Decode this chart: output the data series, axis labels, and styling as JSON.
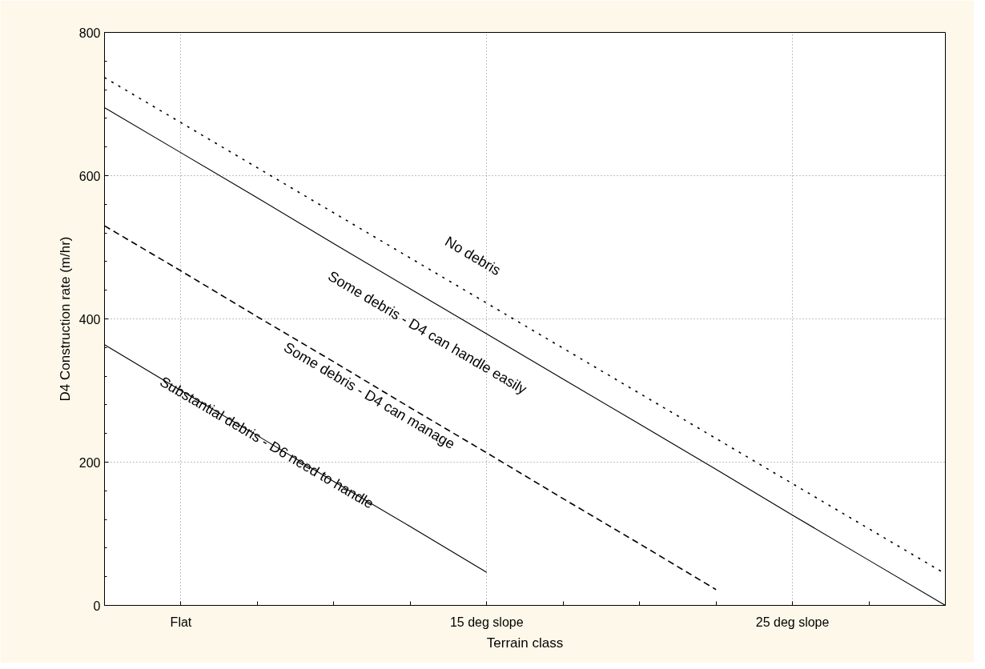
{
  "chart_data": {
    "type": "line",
    "xlabel": "Terrain class",
    "ylabel": "D4 Construction rate (m/hr)",
    "categories": [
      null,
      "Flat",
      null,
      null,
      null,
      "15 deg slope",
      null,
      null,
      null,
      "25 deg slope",
      null,
      null
    ],
    "ylim": [
      0,
      800
    ],
    "yticks": [
      0,
      200,
      400,
      600,
      800
    ],
    "grid": true,
    "series": [
      {
        "values": [
          737,
          674,
          611,
          548,
          485,
          422,
          359,
          296,
          233,
          170,
          107,
          44
        ],
        "color": "#000000",
        "line_style": "dotted"
      },
      {
        "values": [
          695,
          632,
          569,
          505,
          442,
          379,
          316,
          253,
          190,
          126,
          63,
          0
        ],
        "color": "#000000",
        "line_style": "solid"
      },
      {
        "values": [
          530,
          467,
          403,
          340,
          276,
          213,
          149,
          86,
          22,
          null,
          null,
          null
        ],
        "color": "#000000",
        "line_style": "dashed"
      },
      {
        "values": [
          364,
          300,
          237,
          173,
          110,
          46,
          null,
          null,
          null,
          null,
          null,
          null
        ],
        "color": "#000000",
        "line_style": "solid"
      }
    ],
    "annotations": [
      "No debris",
      "Some debris - D4 can handle easily",
      "Some debris - D4 can manage",
      "Substantial debris - D6 need to handle"
    ]
  }
}
